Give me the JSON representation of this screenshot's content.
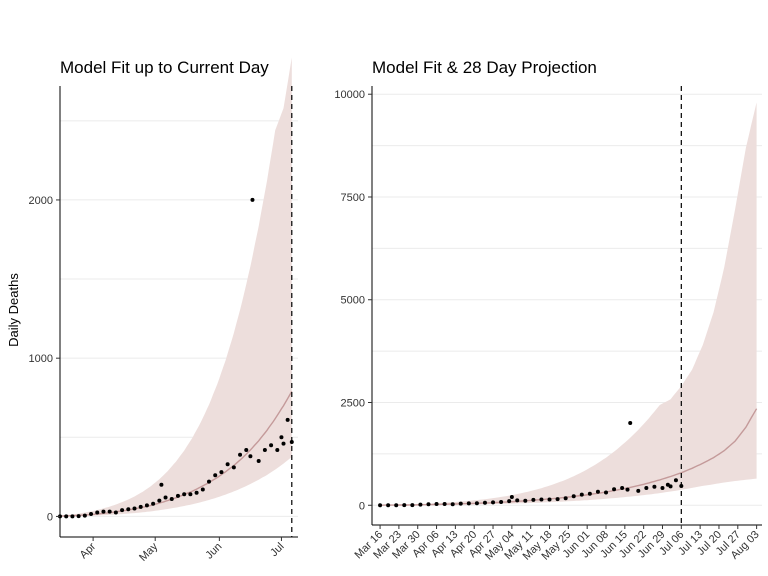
{
  "colors": {
    "band": "#eddedc",
    "line": "#c49a9a",
    "point": "#000000",
    "grid": "#ebebeb"
  },
  "chart_data": [
    {
      "type": "line",
      "title": "Model Fit up to Current Day",
      "xlabel": "",
      "ylabel": "Daily Deaths",
      "x_ticks": [
        "Apr",
        "May",
        "Jun",
        "Jul"
      ],
      "x_tick_dates": [
        "2020-04-01",
        "2020-05-01",
        "2020-06-01",
        "2020-07-01"
      ],
      "xlim": [
        "2020-03-16",
        "2020-07-09"
      ],
      "y_ticks": [
        0,
        1000,
        2000
      ],
      "ylim": [
        -130,
        2720
      ],
      "grid": "horizontal",
      "current_day": "2020-07-06",
      "start_date": "2020-03-16",
      "end_date": "2020-07-06",
      "band_series": true,
      "observed_series": true
    },
    {
      "type": "line",
      "title": "Model Fit & 28 Day Projection",
      "xlabel": "",
      "ylabel": "",
      "x_ticks": [
        "Mar 16",
        "Mar 23",
        "Mar 30",
        "Apr 06",
        "Apr 13",
        "Apr 20",
        "Apr 27",
        "May 04",
        "May 11",
        "May 18",
        "May 25",
        "Jun 01",
        "Jun 08",
        "Jun 15",
        "Jun 22",
        "Jun 29",
        "Jul 06",
        "Jul 13",
        "Jul 20",
        "Jul 27",
        "Aug 03"
      ],
      "xlim": [
        "2020-03-13",
        "2020-08-05"
      ],
      "y_ticks": [
        0,
        2500,
        5000,
        7500,
        10000
      ],
      "ylim": [
        -480,
        10200
      ],
      "grid": "horizontal",
      "current_day": "2020-07-06",
      "start_date": "2020-03-16",
      "end_date": "2020-08-03",
      "band_series": true,
      "observed_series": true
    }
  ],
  "series": {
    "dates": [
      "2020-03-16",
      "2020-03-20",
      "2020-03-24",
      "2020-03-28",
      "2020-04-01",
      "2020-04-05",
      "2020-04-09",
      "2020-04-13",
      "2020-04-17",
      "2020-04-21",
      "2020-04-25",
      "2020-04-29",
      "2020-05-03",
      "2020-05-07",
      "2020-05-11",
      "2020-05-15",
      "2020-05-19",
      "2020-05-23",
      "2020-05-27",
      "2020-05-31",
      "2020-06-04",
      "2020-06-08",
      "2020-06-12",
      "2020-06-16",
      "2020-06-20",
      "2020-06-24",
      "2020-06-28",
      "2020-07-02",
      "2020-07-06",
      "2020-07-10",
      "2020-07-14",
      "2020-07-18",
      "2020-07-22",
      "2020-07-26",
      "2020-07-30",
      "2020-08-03"
    ],
    "median": [
      2,
      4,
      6,
      9,
      13,
      18,
      24,
      31,
      39,
      48,
      58,
      70,
      84,
      100,
      118,
      138,
      160,
      186,
      214,
      246,
      282,
      322,
      368,
      420,
      478,
      544,
      618,
      700,
      790,
      900,
      1020,
      1160,
      1330,
      1560,
      1900,
      2350
    ],
    "lower": [
      0,
      1,
      2,
      3,
      5,
      7,
      10,
      13,
      17,
      21,
      26,
      32,
      39,
      47,
      56,
      66,
      77,
      90,
      104,
      120,
      138,
      158,
      180,
      205,
      232,
      262,
      296,
      334,
      376,
      422,
      472,
      510,
      555,
      590,
      620,
      650
    ],
    "upper": [
      5,
      10,
      16,
      24,
      34,
      47,
      62,
      80,
      101,
      126,
      156,
      192,
      235,
      286,
      346,
      416,
      498,
      594,
      706,
      836,
      986,
      1158,
      1356,
      1580,
      1834,
      2120,
      2440,
      2580,
      2900,
      3300,
      3900,
      4700,
      5800,
      7200,
      8700,
      9800
    ],
    "obs_dates": [
      "2020-03-16",
      "2020-03-19",
      "2020-03-22",
      "2020-03-25",
      "2020-03-28",
      "2020-03-31",
      "2020-04-03",
      "2020-04-06",
      "2020-04-09",
      "2020-04-12",
      "2020-04-15",
      "2020-04-18",
      "2020-04-21",
      "2020-04-24",
      "2020-04-27",
      "2020-04-30",
      "2020-05-03",
      "2020-05-04",
      "2020-05-06",
      "2020-05-09",
      "2020-05-12",
      "2020-05-15",
      "2020-05-18",
      "2020-05-21",
      "2020-05-24",
      "2020-05-27",
      "2020-05-30",
      "2020-06-02",
      "2020-06-05",
      "2020-06-08",
      "2020-06-11",
      "2020-06-14",
      "2020-06-16",
      "2020-06-17",
      "2020-06-20",
      "2020-06-23",
      "2020-06-26",
      "2020-06-29",
      "2020-07-01",
      "2020-07-02",
      "2020-07-04",
      "2020-07-06"
    ],
    "obs": [
      0,
      0,
      0,
      2,
      5,
      15,
      25,
      30,
      30,
      25,
      40,
      45,
      50,
      60,
      70,
      80,
      100,
      200,
      120,
      110,
      130,
      140,
      140,
      150,
      170,
      220,
      260,
      280,
      330,
      310,
      390,
      420,
      380,
      2000,
      350,
      420,
      450,
      420,
      500,
      460,
      610,
      470
    ]
  }
}
